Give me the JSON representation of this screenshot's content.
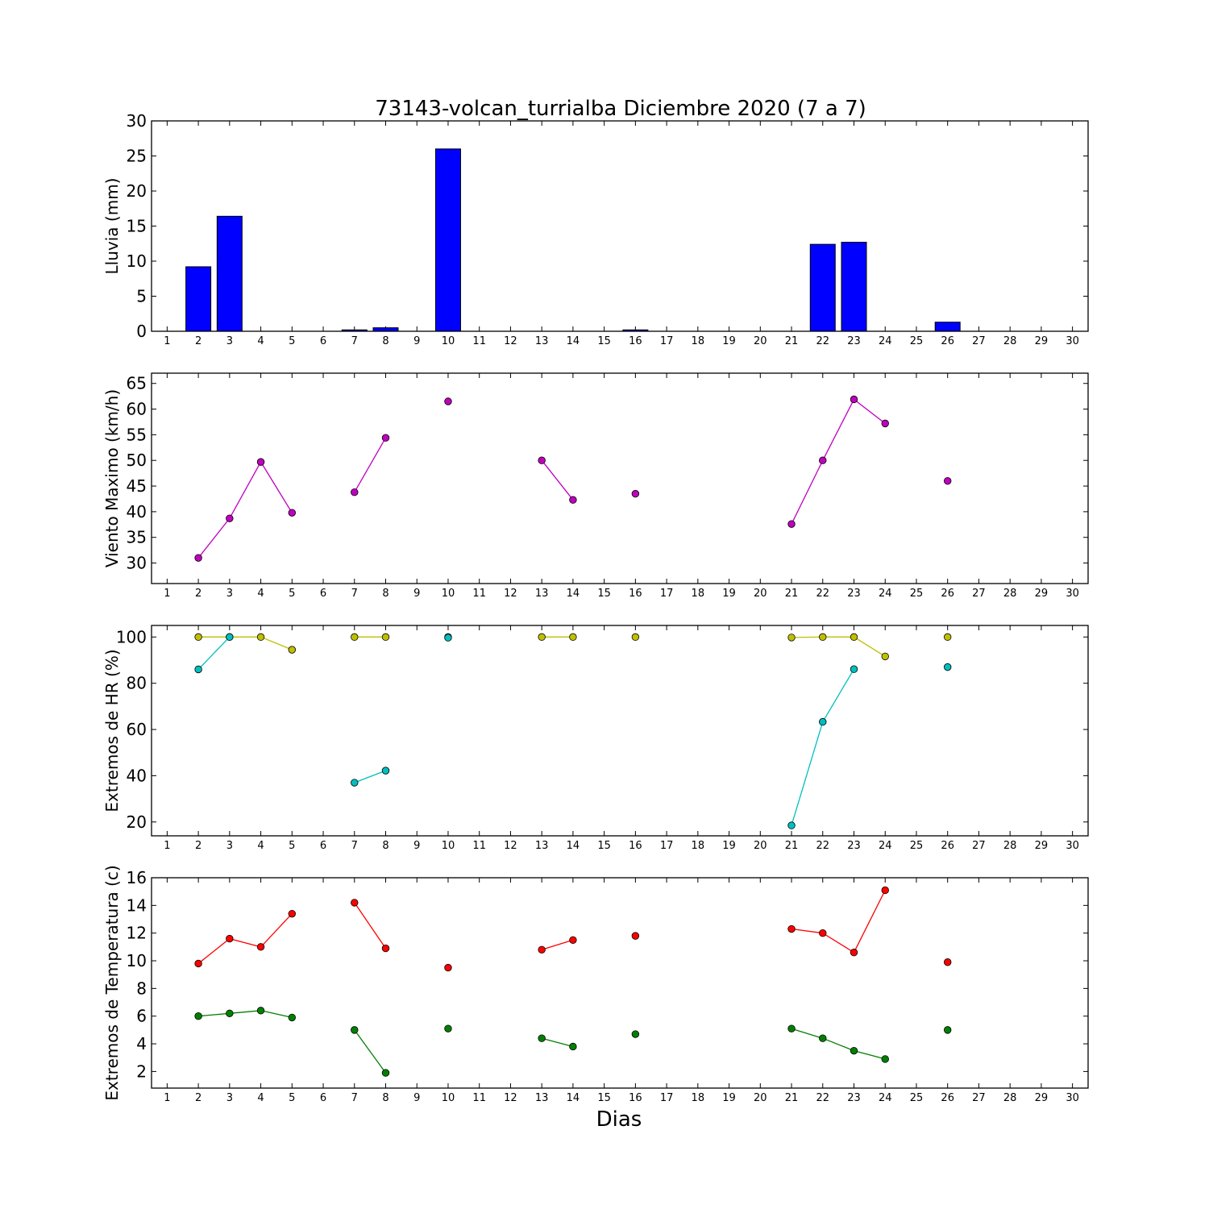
{
  "chart_data": {
    "title": "73143-volcan_turrialba Diciembre 2020  (7 a 7)",
    "xlabel": "Dias",
    "x_ticks": [
      1,
      2,
      3,
      4,
      5,
      6,
      7,
      8,
      9,
      10,
      11,
      12,
      13,
      14,
      15,
      16,
      17,
      18,
      19,
      20,
      21,
      22,
      23,
      24,
      25,
      26,
      27,
      28,
      29,
      30
    ],
    "panels": [
      {
        "type": "bar",
        "ylabel": "Lluvia (mm)",
        "ylim": [
          0,
          30
        ],
        "yticks": [
          0,
          5,
          10,
          15,
          20,
          25,
          30
        ],
        "series": [
          {
            "color": "#0000ff",
            "x": [
              2,
              3,
              4,
              5,
              6,
              7,
              8,
              9,
              10,
              11,
              12,
              13,
              14,
              15,
              16,
              17,
              18,
              19,
              20,
              21,
              22,
              23,
              24,
              25,
              26,
              27,
              28,
              29,
              30
            ],
            "values": [
              9.2,
              16.4,
              0,
              0,
              0,
              0.2,
              0.5,
              0,
              26,
              0,
              0,
              0,
              0,
              0,
              0.2,
              0,
              0,
              0,
              0,
              0,
              12.4,
              12.7,
              0,
              0,
              1.3,
              0,
              0,
              0,
              0
            ]
          }
        ]
      },
      {
        "type": "line",
        "ylabel": "Viento Maximo (km/h)",
        "ylim": [
          26,
          67
        ],
        "yticks": [
          30,
          35,
          40,
          45,
          50,
          55,
          60,
          65
        ],
        "series": [
          {
            "color": "#bf00bf",
            "x": [
              2,
              3,
              4,
              5,
              6,
              7,
              8,
              9,
              10,
              11,
              12,
              13,
              14,
              15,
              16,
              17,
              18,
              19,
              20,
              21,
              22,
              23,
              24,
              25,
              26
            ],
            "values": [
              31,
              38.7,
              49.7,
              39.8,
              null,
              43.8,
              54.4,
              null,
              61.5,
              null,
              null,
              50,
              42.3,
              null,
              43.5,
              null,
              null,
              null,
              null,
              37.6,
              50,
              61.9,
              57.2,
              null,
              46
            ]
          }
        ]
      },
      {
        "type": "line",
        "ylabel": "Extremos de HR (%)",
        "ylim": [
          14,
          105
        ],
        "yticks": [
          20,
          40,
          60,
          80,
          100
        ],
        "series": [
          {
            "color": "#bfbf00",
            "x": [
              2,
              3,
              4,
              5,
              6,
              7,
              8,
              9,
              10,
              11,
              12,
              13,
              14,
              15,
              16,
              17,
              18,
              19,
              20,
              21,
              22,
              23,
              24,
              25,
              26
            ],
            "values": [
              100,
              100,
              100,
              94.5,
              null,
              100,
              100,
              null,
              100,
              null,
              null,
              100,
              100,
              null,
              100,
              null,
              null,
              null,
              null,
              99.8,
              100,
              100,
              91.6,
              null,
              100
            ]
          },
          {
            "color": "#00bfbf",
            "x": [
              2,
              3,
              4,
              5,
              6,
              7,
              8,
              9,
              10,
              11,
              12,
              13,
              14,
              15,
              16,
              17,
              18,
              19,
              20,
              21,
              22,
              23,
              24,
              25,
              26
            ],
            "values": [
              86,
              100,
              null,
              null,
              null,
              37,
              42.2,
              null,
              99.7,
              null,
              null,
              null,
              null,
              null,
              null,
              null,
              null,
              null,
              null,
              18.5,
              63.3,
              86.1,
              null,
              null,
              87
            ]
          }
        ]
      },
      {
        "type": "line",
        "ylabel": "Extremos de Temperatura (c)",
        "ylim": [
          0.8,
          16
        ],
        "yticks": [
          2,
          4,
          6,
          8,
          10,
          12,
          14,
          16
        ],
        "series": [
          {
            "color": "#ff0000",
            "x": [
              2,
              3,
              4,
              5,
              6,
              7,
              8,
              9,
              10,
              11,
              12,
              13,
              14,
              15,
              16,
              17,
              18,
              19,
              20,
              21,
              22,
              23,
              24,
              25,
              26
            ],
            "values": [
              9.8,
              11.6,
              11,
              13.4,
              null,
              14.2,
              10.9,
              null,
              9.5,
              null,
              null,
              10.8,
              11.5,
              null,
              11.8,
              null,
              null,
              null,
              null,
              12.3,
              12,
              10.6,
              15.1,
              null,
              9.9
            ]
          },
          {
            "color": "#008000",
            "x": [
              2,
              3,
              4,
              5,
              6,
              7,
              8,
              9,
              10,
              11,
              12,
              13,
              14,
              15,
              16,
              17,
              18,
              19,
              20,
              21,
              22,
              23,
              24,
              25,
              26
            ],
            "values": [
              6,
              6.2,
              6.4,
              5.9,
              null,
              5,
              1.9,
              null,
              5.1,
              null,
              null,
              4.4,
              3.8,
              null,
              4.7,
              null,
              null,
              null,
              null,
              5.1,
              4.4,
              3.5,
              2.9,
              null,
              5
            ]
          }
        ]
      }
    ]
  }
}
